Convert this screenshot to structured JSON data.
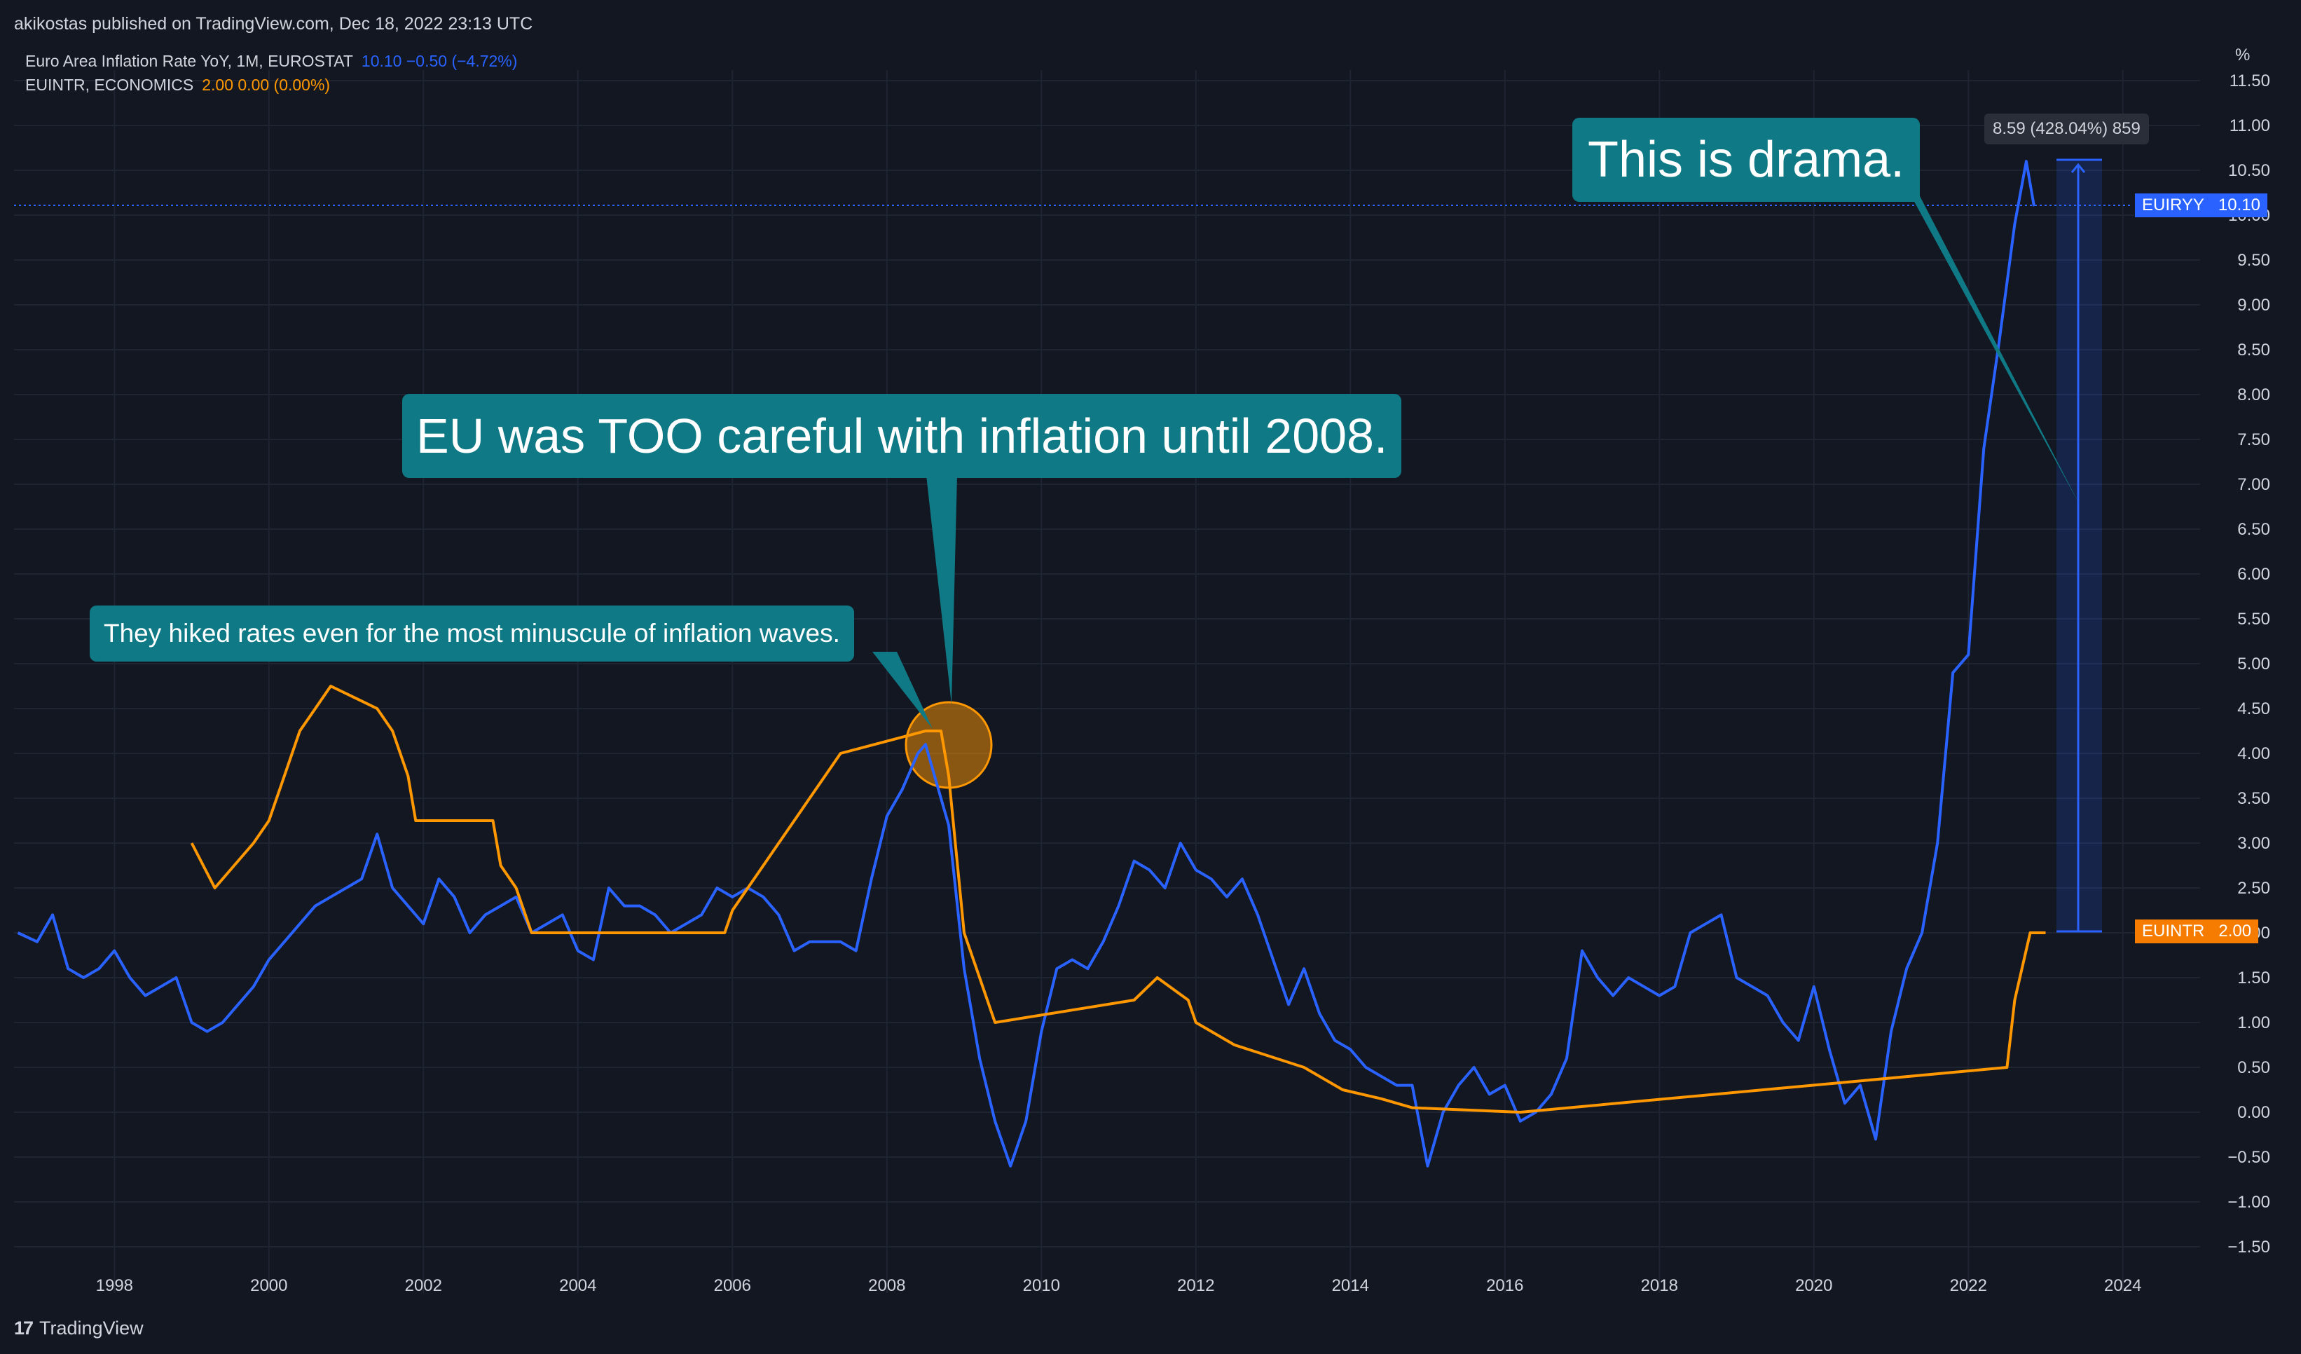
{
  "publisher": "akikostas published on TradingView.com, Dec 18, 2022 23:13 UTC",
  "legend": [
    {
      "name": "Euro Area Inflation Rate YoY, 1M, EUROSTAT",
      "values": "10.10  −0.50 (−4.72%)",
      "color": "#2962ff"
    },
    {
      "name": "EUINTR, ECONOMICS",
      "values": "2.00  0.00 (0.00%)",
      "color": "#ff9800"
    }
  ],
  "footer": {
    "logo_text": "TradingView",
    "logo_mark": "17"
  },
  "callouts": {
    "drama": "This is drama.",
    "careful": "EU was TOO careful with inflation until 2008.",
    "hiked": "They hiked rates even for the most minuscule of inflation waves."
  },
  "measure": {
    "label": "8.59 (428.04%) 859"
  },
  "price_tags": {
    "euiryy": {
      "symbol": "EUIRYY",
      "value": "10.10",
      "color": "#2962ff"
    },
    "euintr": {
      "symbol": "EUINTR",
      "value": "2.00",
      "color": "#f57c00"
    }
  },
  "chart_data": {
    "type": "line",
    "y_unit_label": "%",
    "x_range": [
      1996.7,
      2025.0
    ],
    "y_range": [
      -1.5,
      11.5
    ],
    "x_ticks": [
      "1998",
      "2000",
      "2002",
      "2004",
      "2006",
      "2008",
      "2010",
      "2012",
      "2014",
      "2016",
      "2018",
      "2020",
      "2022",
      "2024"
    ],
    "y_ticks": [
      "11.50",
      "11.00",
      "10.50",
      "10.00",
      "9.50",
      "9.00",
      "8.50",
      "8.00",
      "7.50",
      "7.00",
      "6.50",
      "6.00",
      "5.50",
      "5.00",
      "4.50",
      "4.00",
      "3.50",
      "3.00",
      "2.50",
      "2.00",
      "1.50",
      "1.00",
      "0.50",
      "0.00",
      "−0.50",
      "−1.00",
      "−1.50"
    ],
    "series": [
      {
        "name": "Euro Area Inflation Rate YoY",
        "color": "#2962ff",
        "points": [
          [
            1996.75,
            2.0
          ],
          [
            1997.0,
            1.9
          ],
          [
            1997.2,
            2.2
          ],
          [
            1997.4,
            1.6
          ],
          [
            1997.6,
            1.5
          ],
          [
            1997.8,
            1.6
          ],
          [
            1998.0,
            1.8
          ],
          [
            1998.2,
            1.5
          ],
          [
            1998.4,
            1.3
          ],
          [
            1998.6,
            1.4
          ],
          [
            1998.8,
            1.5
          ],
          [
            1999.0,
            1.0
          ],
          [
            1999.2,
            0.9
          ],
          [
            1999.4,
            1.0
          ],
          [
            1999.6,
            1.2
          ],
          [
            1999.8,
            1.4
          ],
          [
            2000.0,
            1.7
          ],
          [
            2000.2,
            1.9
          ],
          [
            2000.4,
            2.1
          ],
          [
            2000.6,
            2.3
          ],
          [
            2000.8,
            2.4
          ],
          [
            2001.0,
            2.5
          ],
          [
            2001.2,
            2.6
          ],
          [
            2001.4,
            3.1
          ],
          [
            2001.6,
            2.5
          ],
          [
            2001.8,
            2.3
          ],
          [
            2002.0,
            2.1
          ],
          [
            2002.2,
            2.6
          ],
          [
            2002.4,
            2.4
          ],
          [
            2002.6,
            2.0
          ],
          [
            2002.8,
            2.2
          ],
          [
            2003.0,
            2.3
          ],
          [
            2003.2,
            2.4
          ],
          [
            2003.4,
            2.0
          ],
          [
            2003.6,
            2.1
          ],
          [
            2003.8,
            2.2
          ],
          [
            2004.0,
            1.8
          ],
          [
            2004.2,
            1.7
          ],
          [
            2004.4,
            2.5
          ],
          [
            2004.6,
            2.3
          ],
          [
            2004.8,
            2.3
          ],
          [
            2005.0,
            2.2
          ],
          [
            2005.2,
            2.0
          ],
          [
            2005.4,
            2.1
          ],
          [
            2005.6,
            2.2
          ],
          [
            2005.8,
            2.5
          ],
          [
            2006.0,
            2.4
          ],
          [
            2006.2,
            2.5
          ],
          [
            2006.4,
            2.4
          ],
          [
            2006.6,
            2.2
          ],
          [
            2006.8,
            1.8
          ],
          [
            2007.0,
            1.9
          ],
          [
            2007.2,
            1.9
          ],
          [
            2007.4,
            1.9
          ],
          [
            2007.6,
            1.8
          ],
          [
            2007.8,
            2.6
          ],
          [
            2008.0,
            3.3
          ],
          [
            2008.2,
            3.6
          ],
          [
            2008.4,
            4.0
          ],
          [
            2008.5,
            4.1
          ],
          [
            2008.6,
            3.8
          ],
          [
            2008.8,
            3.2
          ],
          [
            2009.0,
            1.6
          ],
          [
            2009.2,
            0.6
          ],
          [
            2009.4,
            -0.1
          ],
          [
            2009.6,
            -0.6
          ],
          [
            2009.8,
            -0.1
          ],
          [
            2010.0,
            0.9
          ],
          [
            2010.2,
            1.6
          ],
          [
            2010.4,
            1.7
          ],
          [
            2010.6,
            1.6
          ],
          [
            2010.8,
            1.9
          ],
          [
            2011.0,
            2.3
          ],
          [
            2011.2,
            2.8
          ],
          [
            2011.4,
            2.7
          ],
          [
            2011.6,
            2.5
          ],
          [
            2011.8,
            3.0
          ],
          [
            2012.0,
            2.7
          ],
          [
            2012.2,
            2.6
          ],
          [
            2012.4,
            2.4
          ],
          [
            2012.6,
            2.6
          ],
          [
            2012.8,
            2.2
          ],
          [
            2013.0,
            1.7
          ],
          [
            2013.2,
            1.2
          ],
          [
            2013.4,
            1.6
          ],
          [
            2013.6,
            1.1
          ],
          [
            2013.8,
            0.8
          ],
          [
            2014.0,
            0.7
          ],
          [
            2014.2,
            0.5
          ],
          [
            2014.4,
            0.4
          ],
          [
            2014.6,
            0.3
          ],
          [
            2014.8,
            0.3
          ],
          [
            2015.0,
            -0.6
          ],
          [
            2015.2,
            0.0
          ],
          [
            2015.4,
            0.3
          ],
          [
            2015.6,
            0.5
          ],
          [
            2015.8,
            0.2
          ],
          [
            2016.0,
            0.3
          ],
          [
            2016.2,
            -0.1
          ],
          [
            2016.4,
            0.0
          ],
          [
            2016.6,
            0.2
          ],
          [
            2016.8,
            0.6
          ],
          [
            2017.0,
            1.8
          ],
          [
            2017.2,
            1.5
          ],
          [
            2017.4,
            1.3
          ],
          [
            2017.6,
            1.5
          ],
          [
            2017.8,
            1.4
          ],
          [
            2018.0,
            1.3
          ],
          [
            2018.2,
            1.4
          ],
          [
            2018.4,
            2.0
          ],
          [
            2018.6,
            2.1
          ],
          [
            2018.8,
            2.2
          ],
          [
            2019.0,
            1.5
          ],
          [
            2019.2,
            1.4
          ],
          [
            2019.4,
            1.3
          ],
          [
            2019.6,
            1.0
          ],
          [
            2019.8,
            0.8
          ],
          [
            2020.0,
            1.4
          ],
          [
            2020.2,
            0.7
          ],
          [
            2020.4,
            0.1
          ],
          [
            2020.6,
            0.3
          ],
          [
            2020.8,
            -0.3
          ],
          [
            2021.0,
            0.9
          ],
          [
            2021.2,
            1.6
          ],
          [
            2021.4,
            2.0
          ],
          [
            2021.6,
            3.0
          ],
          [
            2021.8,
            4.9
          ],
          [
            2022.0,
            5.1
          ],
          [
            2022.2,
            7.4
          ],
          [
            2022.4,
            8.6
          ],
          [
            2022.6,
            9.9
          ],
          [
            2022.75,
            10.6
          ],
          [
            2022.85,
            10.1
          ]
        ]
      },
      {
        "name": "EUINTR",
        "color": "#ff9800",
        "points": [
          [
            1999.0,
            3.0
          ],
          [
            1999.3,
            2.5
          ],
          [
            1999.8,
            3.0
          ],
          [
            2000.0,
            3.25
          ],
          [
            2000.2,
            3.75
          ],
          [
            2000.4,
            4.25
          ],
          [
            2000.6,
            4.5
          ],
          [
            2000.8,
            4.75
          ],
          [
            2001.4,
            4.5
          ],
          [
            2001.6,
            4.25
          ],
          [
            2001.8,
            3.75
          ],
          [
            2001.9,
            3.25
          ],
          [
            2002.9,
            3.25
          ],
          [
            2003.0,
            2.75
          ],
          [
            2003.2,
            2.5
          ],
          [
            2003.4,
            2.0
          ],
          [
            2005.9,
            2.0
          ],
          [
            2006.0,
            2.25
          ],
          [
            2006.2,
            2.5
          ],
          [
            2006.4,
            2.75
          ],
          [
            2006.6,
            3.0
          ],
          [
            2006.8,
            3.25
          ],
          [
            2007.0,
            3.5
          ],
          [
            2007.2,
            3.75
          ],
          [
            2007.4,
            4.0
          ],
          [
            2008.5,
            4.25
          ],
          [
            2008.7,
            4.25
          ],
          [
            2008.8,
            3.75
          ],
          [
            2009.0,
            2.0
          ],
          [
            2009.2,
            1.5
          ],
          [
            2009.4,
            1.0
          ],
          [
            2011.2,
            1.25
          ],
          [
            2011.5,
            1.5
          ],
          [
            2011.9,
            1.25
          ],
          [
            2012.0,
            1.0
          ],
          [
            2012.5,
            0.75
          ],
          [
            2013.4,
            0.5
          ],
          [
            2013.9,
            0.25
          ],
          [
            2014.4,
            0.15
          ],
          [
            2014.8,
            0.05
          ],
          [
            2016.2,
            0.0
          ],
          [
            2022.5,
            0.5
          ],
          [
            2022.6,
            1.25
          ],
          [
            2022.8,
            2.0
          ],
          [
            2023.0,
            2.0
          ]
        ]
      }
    ]
  }
}
